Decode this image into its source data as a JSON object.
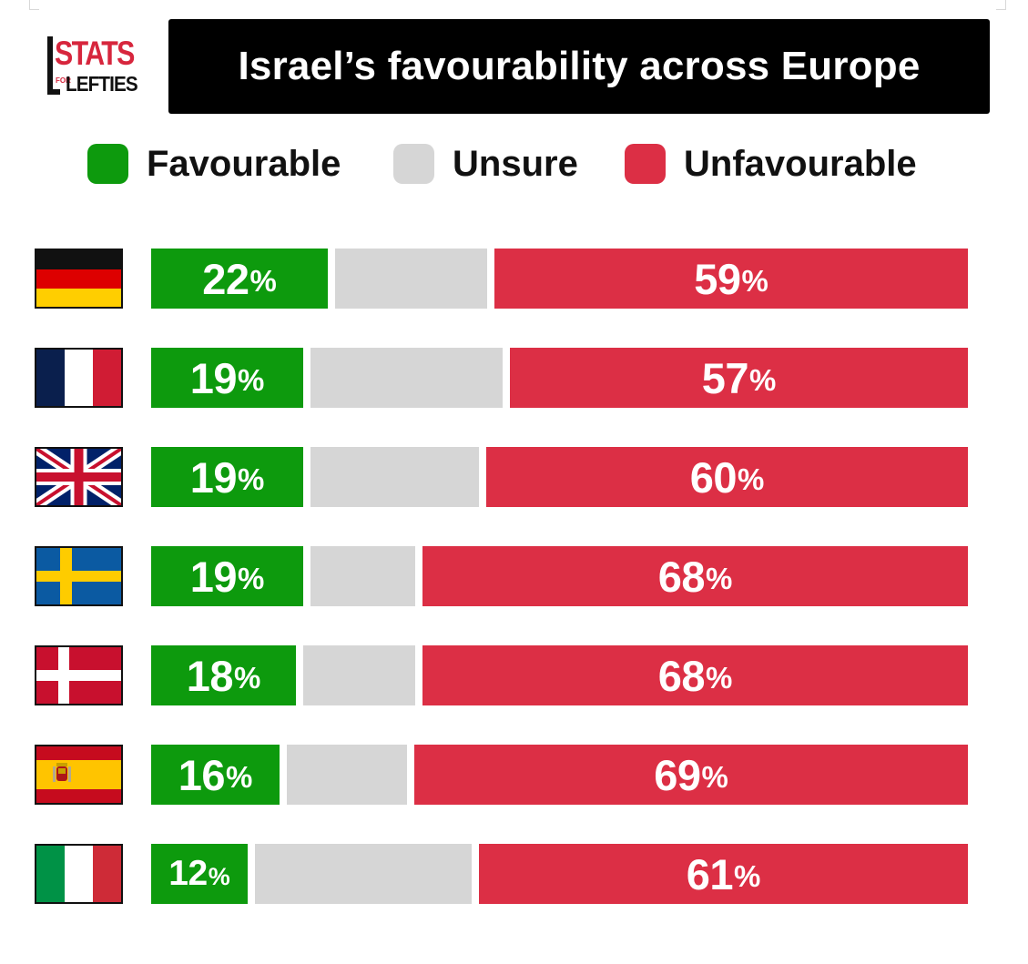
{
  "logo": {
    "line1": "STATS",
    "line2": "FOR",
    "line3": "LEFTIES"
  },
  "title": "Israel’s favourability across Europe",
  "legend": [
    {
      "label": "Favourable",
      "color": "#0d9a0d"
    },
    {
      "label": "Unsure",
      "color": "#d6d6d6"
    },
    {
      "label": "Unfavourable",
      "color": "#dc2f45"
    }
  ],
  "chart_data": {
    "type": "bar",
    "orientation": "horizontal-stacked",
    "title": "Israel’s favourability across Europe",
    "unit": "%",
    "categories": [
      "Germany",
      "France",
      "United Kingdom",
      "Sweden",
      "Denmark",
      "Spain",
      "Italy"
    ],
    "series": [
      {
        "name": "Favourable",
        "color": "#0d9a0d",
        "values": [
          22,
          19,
          19,
          19,
          18,
          16,
          12
        ],
        "labeled": true
      },
      {
        "name": "Unsure",
        "color": "#d6d6d6",
        "values": [
          19,
          24,
          21,
          13,
          14,
          15,
          27
        ],
        "labeled": false
      },
      {
        "name": "Unfavourable",
        "color": "#dc2f45",
        "values": [
          59,
          57,
          60,
          68,
          68,
          69,
          61
        ],
        "labeled": true
      }
    ],
    "xlim": [
      0,
      100
    ]
  }
}
